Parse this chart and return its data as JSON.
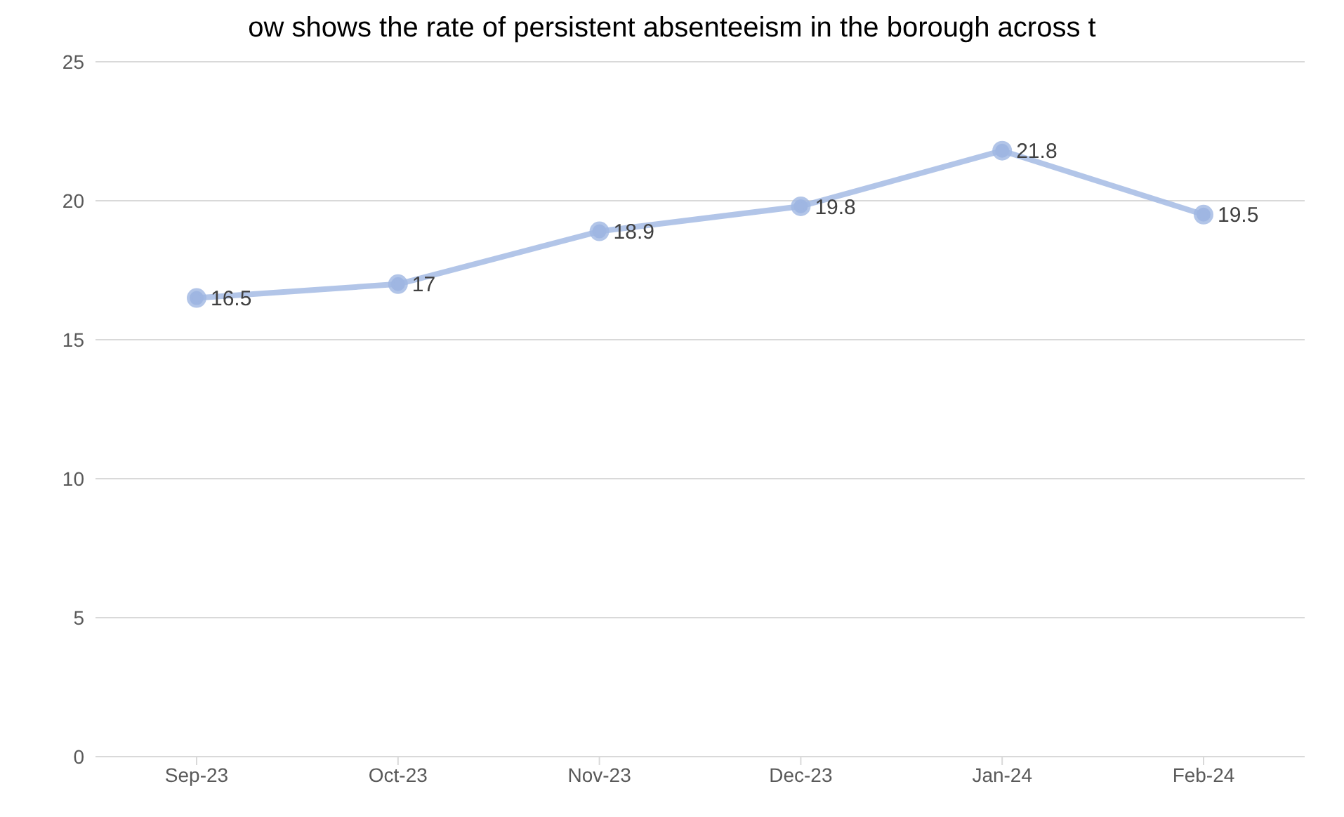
{
  "chart_data": {
    "type": "line",
    "title": "ow shows the rate of persistent absenteeism in the borough across t",
    "categories": [
      "Sep-23",
      "Oct-23",
      "Nov-23",
      "Dec-23",
      "Jan-24",
      "Feb-24"
    ],
    "series": [
      {
        "color": "#9fb6e2",
        "values": [
          16.5,
          17,
          18.9,
          19.8,
          21.8,
          19.5
        ]
      }
    ],
    "ylim": [
      0,
      25
    ],
    "yticks": [
      0,
      5,
      10,
      15,
      20,
      25
    ],
    "grid": "y",
    "marker": "circle",
    "line_style": "solid",
    "data_labels": true
  }
}
